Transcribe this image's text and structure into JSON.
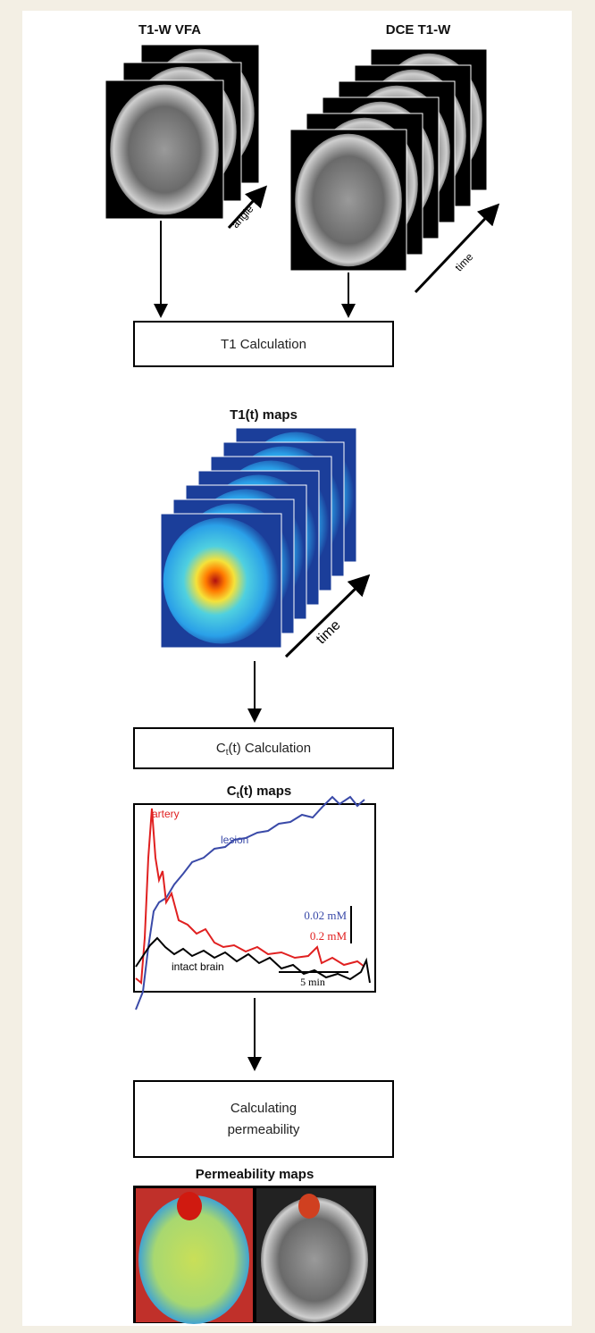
{
  "header": {
    "left_title": "T1-W VFA",
    "right_title": "DCE T1-W"
  },
  "labels": {
    "angle": "angle",
    "time_dce": "time",
    "time_t1": "time"
  },
  "steps": [
    {
      "label": "T1 Calculation"
    },
    {
      "label_main": "C",
      "label_sub": "t",
      "label_rest": "(t) Calculation"
    },
    {
      "label_line1": "Calculating",
      "label_line2": "permeability"
    }
  ],
  "sections": [
    {
      "title": "T1(t) maps"
    },
    {
      "title_main": "C",
      "title_sub": "t",
      "title_rest": "(t) maps"
    },
    {
      "title": "Permeability maps"
    }
  ],
  "plot": {
    "artery": "artery",
    "lesion": "lesion",
    "scale_blue": "0.02 mM",
    "scale_red": "0.2 mM",
    "intact": "intact brain",
    "time_scale": "5 min"
  }
}
